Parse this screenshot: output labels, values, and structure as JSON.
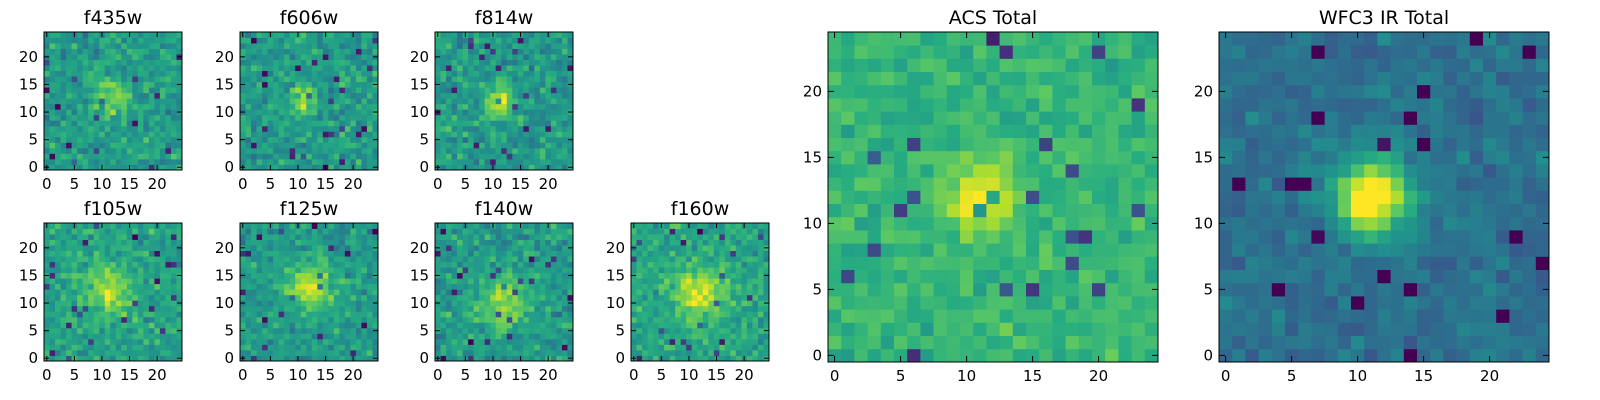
{
  "chart_data": [
    {
      "type": "heatmap",
      "title": "f435w",
      "size": 25,
      "xticks": [
        0,
        5,
        10,
        15,
        20
      ],
      "yticks": [
        0,
        5,
        10,
        15,
        20
      ],
      "xlim": [
        0,
        25
      ],
      "ylim": [
        0,
        25
      ],
      "colormap": "viridis",
      "peak": [
        12,
        13
      ],
      "peak_width": 2.5,
      "peak_strength": 0.25,
      "noise": 0.22,
      "base": 0.55,
      "seed": 11
    },
    {
      "type": "heatmap",
      "title": "f606w",
      "size": 25,
      "xticks": [
        0,
        5,
        10,
        15,
        20
      ],
      "yticks": [
        0,
        5,
        10,
        15,
        20
      ],
      "xlim": [
        0,
        25
      ],
      "ylim": [
        0,
        25
      ],
      "colormap": "viridis",
      "peak": [
        11,
        12
      ],
      "peak_width": 1.8,
      "peak_strength": 0.3,
      "noise": 0.22,
      "base": 0.55,
      "seed": 23
    },
    {
      "type": "heatmap",
      "title": "f814w",
      "size": 25,
      "xticks": [
        0,
        5,
        10,
        15,
        20
      ],
      "yticks": [
        0,
        5,
        10,
        15,
        20
      ],
      "xlim": [
        0,
        25
      ],
      "ylim": [
        0,
        25
      ],
      "colormap": "viridis",
      "peak": [
        11,
        12
      ],
      "peak_width": 1.8,
      "peak_strength": 0.4,
      "noise": 0.22,
      "base": 0.55,
      "seed": 37
    },
    {
      "type": "heatmap",
      "title": "f105w",
      "size": 25,
      "xticks": [
        0,
        5,
        10,
        15,
        20
      ],
      "yticks": [
        0,
        5,
        10,
        15,
        20
      ],
      "xlim": [
        0,
        25
      ],
      "ylim": [
        0,
        25
      ],
      "colormap": "viridis",
      "peak": [
        11,
        12
      ],
      "peak_width": 3,
      "peak_strength": 0.3,
      "noise": 0.2,
      "base": 0.58,
      "seed": 41
    },
    {
      "type": "heatmap",
      "title": "f125w",
      "size": 25,
      "xticks": [
        0,
        5,
        10,
        15,
        20
      ],
      "yticks": [
        0,
        5,
        10,
        15,
        20
      ],
      "xlim": [
        0,
        25
      ],
      "ylim": [
        0,
        25
      ],
      "colormap": "viridis",
      "peak": [
        12,
        13
      ],
      "peak_width": 3,
      "peak_strength": 0.35,
      "noise": 0.2,
      "base": 0.55,
      "seed": 53
    },
    {
      "type": "heatmap",
      "title": "f140w",
      "size": 25,
      "xticks": [
        0,
        5,
        10,
        15,
        20
      ],
      "yticks": [
        0,
        5,
        10,
        15,
        20
      ],
      "xlim": [
        0,
        25
      ],
      "ylim": [
        0,
        25
      ],
      "colormap": "viridis",
      "peak": [
        12,
        10
      ],
      "peak_width": 3.5,
      "peak_strength": 0.3,
      "noise": 0.22,
      "base": 0.55,
      "seed": 67
    },
    {
      "type": "heatmap",
      "title": "f160w",
      "size": 25,
      "xticks": [
        0,
        5,
        10,
        15,
        20
      ],
      "yticks": [
        0,
        5,
        10,
        15,
        20
      ],
      "xlim": [
        0,
        25
      ],
      "ylim": [
        0,
        25
      ],
      "colormap": "viridis",
      "peak": [
        12,
        12
      ],
      "peak_width": 3,
      "peak_strength": 0.35,
      "noise": 0.2,
      "base": 0.6,
      "seed": 79
    },
    {
      "type": "heatmap",
      "title": "ACS Total",
      "size": 25,
      "xticks": [
        0,
        5,
        10,
        15,
        20
      ],
      "yticks": [
        0,
        5,
        10,
        15,
        20
      ],
      "xlim": [
        0,
        25
      ],
      "ylim": [
        0,
        25
      ],
      "colormap": "viridis",
      "peak": [
        11,
        12
      ],
      "peak_width": 1.8,
      "peak_strength": 0.35,
      "noise": 0.14,
      "base": 0.66,
      "seed": 97
    },
    {
      "type": "heatmap",
      "title": "WFC3 IR Total",
      "size": 25,
      "xticks": [
        0,
        5,
        10,
        15,
        20
      ],
      "yticks": [
        0,
        5,
        10,
        15,
        20
      ],
      "xlim": [
        0,
        25
      ],
      "ylim": [
        0,
        25
      ],
      "colormap": "viridis",
      "peak": [
        11,
        12
      ],
      "peak_width": 2,
      "peak_strength": 0.7,
      "noise": 0.13,
      "base": 0.38,
      "seed": 131
    }
  ]
}
